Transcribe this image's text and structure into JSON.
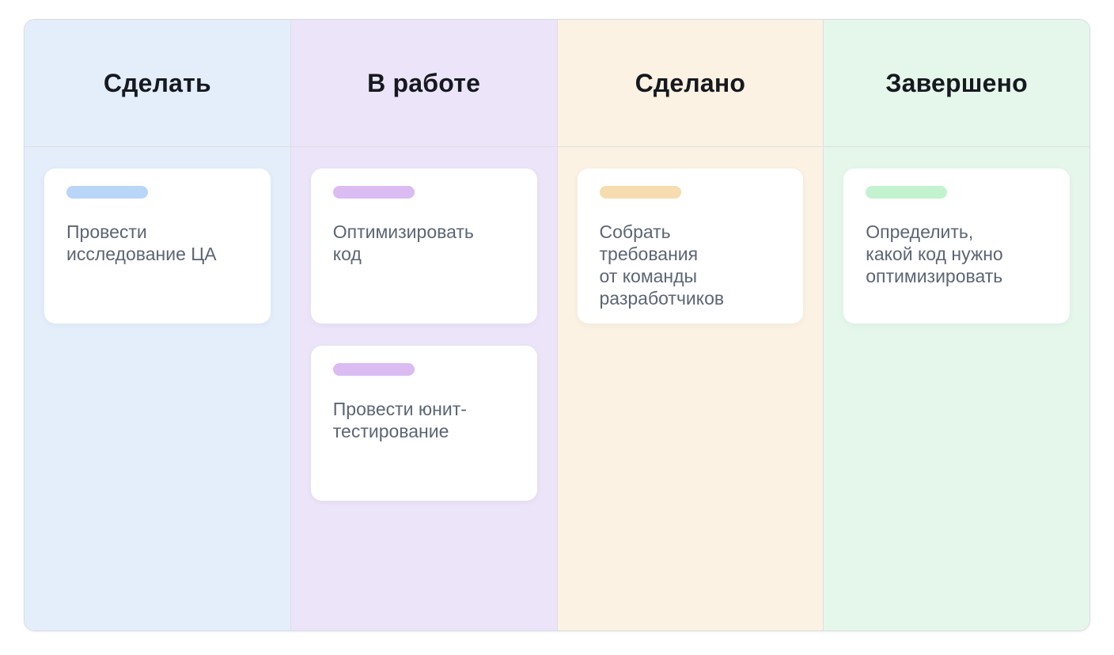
{
  "board": {
    "name": "kanban-board",
    "divider_color": "#dcdfe2",
    "border_color": "#d9dce0",
    "card_text_color": "#5c6574",
    "header_text_color": "#16191f",
    "columns": [
      {
        "title": "Сделать",
        "bg": "#e4eefa",
        "pill": "#b9d6f8",
        "cards": [
          {
            "text": "Провести\nисследование ЦА"
          }
        ]
      },
      {
        "title": "В работе",
        "bg": "#ece4f9",
        "pill": "#dabcf3",
        "cards": [
          {
            "text": "Оптимизировать\nкод"
          },
          {
            "text": "Провести юнит-\nтестирование"
          }
        ]
      },
      {
        "title": "Сделано",
        "bg": "#fbf2e3",
        "pill": "#f6dcae",
        "cards": [
          {
            "text": "Собрать\nтребования\nот команды\nразработчиков"
          }
        ]
      },
      {
        "title": "Завершено",
        "bg": "#e5f7ea",
        "pill": "#c3f2cf",
        "cards": [
          {
            "text": "Определить,\nкакой код нужно\nоптимизировать"
          }
        ]
      }
    ]
  }
}
